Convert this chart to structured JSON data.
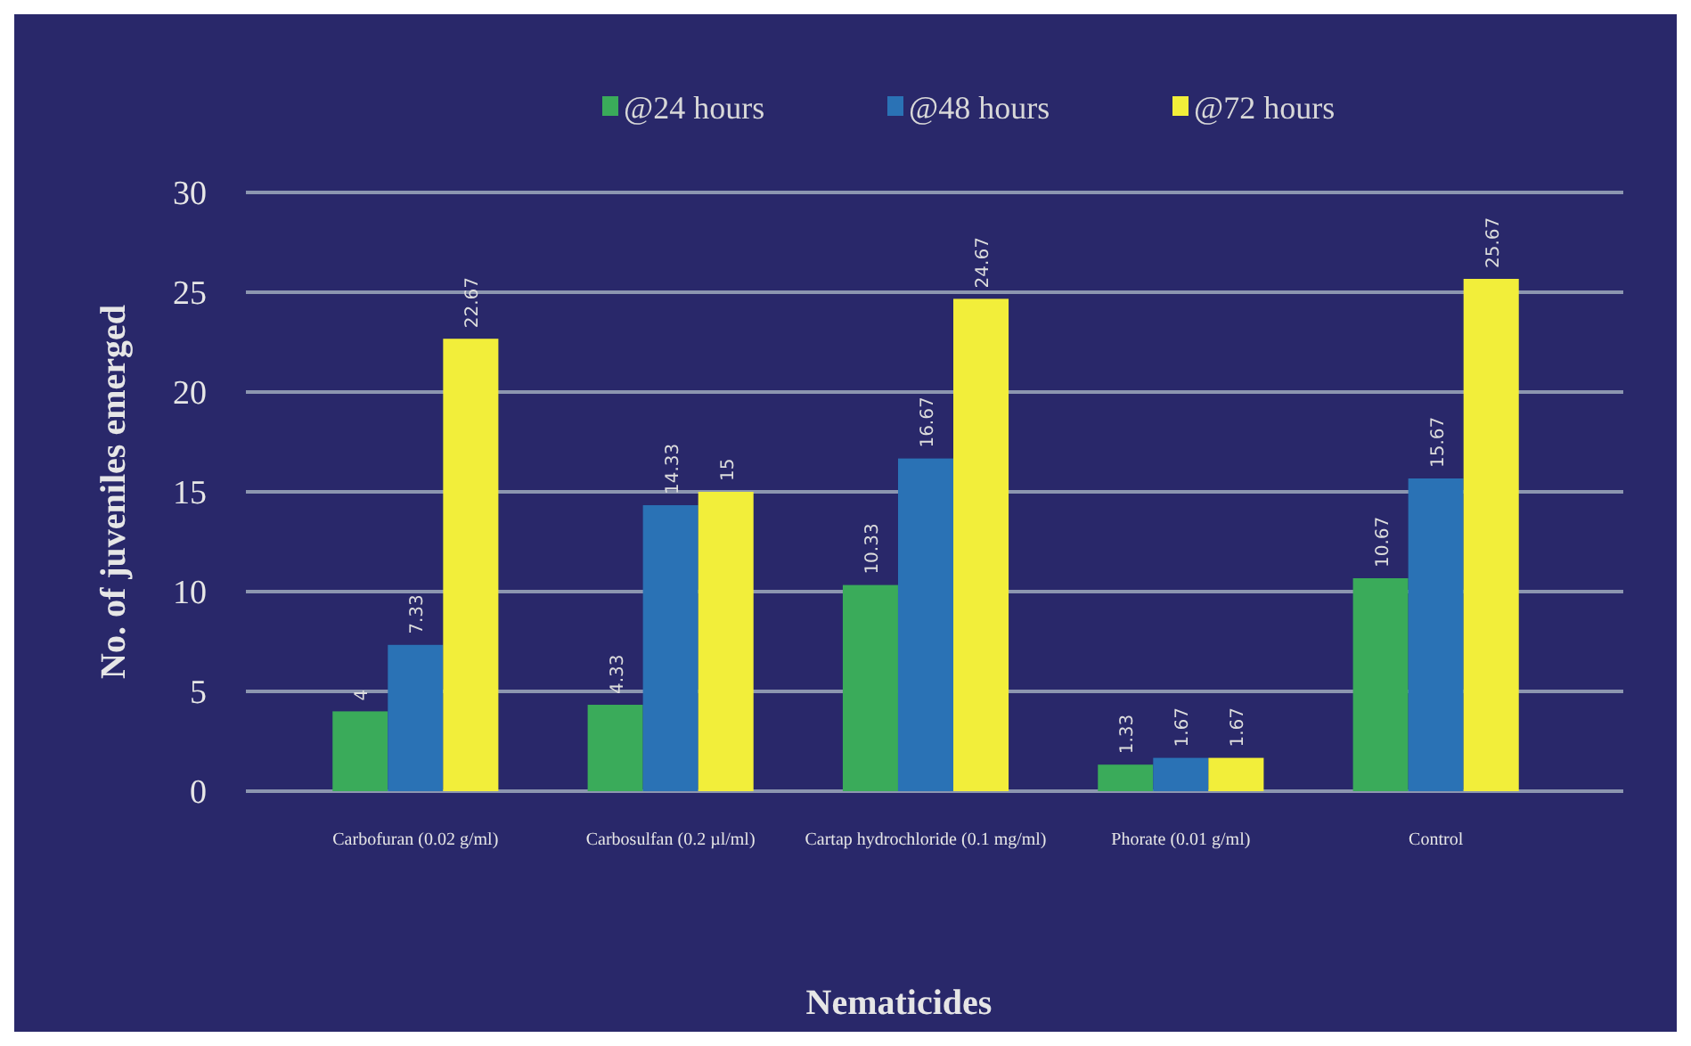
{
  "chart_data": {
    "type": "bar",
    "xlabel": "Nematicides",
    "ylabel": "No. of juveniles emerged",
    "categories": [
      "Carbofuran (0.02 g/ml)",
      "Carbosulfan (0.2 µl/ml)",
      "Cartap hydrochloride  (0.1 mg/ml)",
      "Phorate (0.01 g/ml)",
      "Control"
    ],
    "series": [
      {
        "name": "@24 hours",
        "color": "#3aab5a",
        "values": [
          4,
          4.33,
          10.33,
          1.33,
          10.67
        ]
      },
      {
        "name": "@48 hours",
        "color": "#2a72b5",
        "values": [
          7.33,
          14.33,
          16.67,
          1.67,
          15.67
        ]
      },
      {
        "name": "@72 hours",
        "color": "#f2ee3a",
        "values": [
          22.67,
          15,
          24.67,
          1.67,
          25.67
        ]
      }
    ],
    "ylim": [
      0,
      30
    ],
    "yticks": [
      0,
      5,
      10,
      15,
      20,
      25,
      30
    ],
    "grid": "y",
    "legend": "top",
    "data_labels": true
  }
}
